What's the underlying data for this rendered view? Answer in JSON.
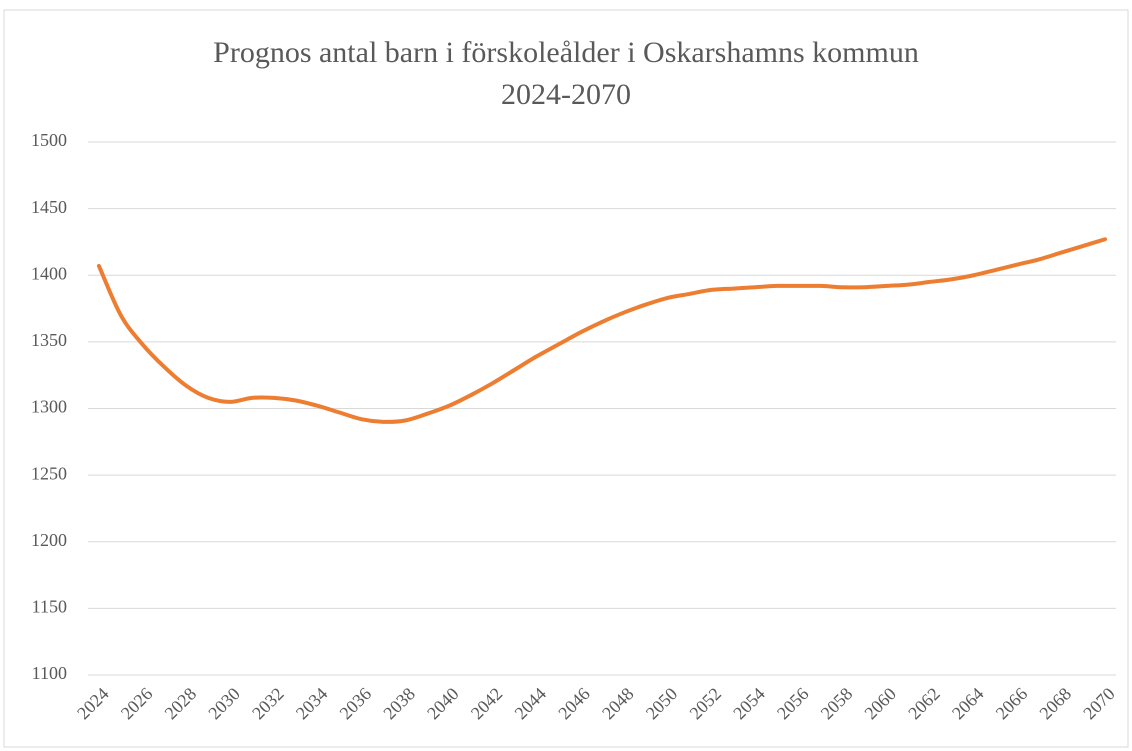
{
  "chart_data": {
    "type": "line",
    "title": [
      "Prognos antal barn i förskoleålder i Oskarshamns kommun",
      "2024-2070"
    ],
    "categories": [
      "2024",
      null,
      "2026",
      null,
      "2028",
      null,
      "2030",
      null,
      "2032",
      null,
      "2034",
      null,
      "2036",
      null,
      "2038",
      null,
      "2040",
      null,
      "2042",
      null,
      "2044",
      null,
      "2046",
      null,
      "2048",
      null,
      "2050",
      null,
      "2052",
      null,
      "2054",
      null,
      "2056",
      null,
      "2058",
      null,
      "2060",
      null,
      "2062",
      null,
      "2064",
      null,
      "2066",
      null,
      "2068",
      null,
      "2070"
    ],
    "values": [
      1407,
      1370,
      1348,
      1331,
      1317,
      1308,
      1305,
      1308,
      1308,
      1306,
      1302,
      1297,
      1292,
      1290,
      1291,
      1296,
      1302,
      1310,
      1319,
      1329,
      1339,
      1348,
      1357,
      1365,
      1372,
      1378,
      1383,
      1386,
      1389,
      1390,
      1391,
      1392,
      1392,
      1392,
      1391,
      1391,
      1392,
      1393,
      1395,
      1397,
      1400,
      1404,
      1408,
      1412,
      1417,
      1422,
      1427
    ],
    "color": "#ed7d31",
    "ylim": [
      1100,
      1500
    ],
    "yticks": [
      1100,
      1150,
      1200,
      1250,
      1300,
      1350,
      1400,
      1450,
      1500
    ],
    "grid": true
  }
}
